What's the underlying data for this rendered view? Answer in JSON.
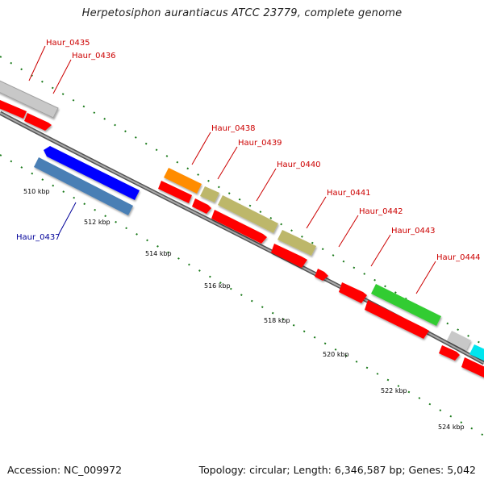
{
  "title": "Herpetosiphon aurantiacus ATCC 23779, complete genome",
  "footer": {
    "accession": "Accession: NC_009972",
    "summary": "Topology: circular; Length: 6,346,587 bp; Genes: 5,042"
  },
  "colors": {
    "label_red": "#cc0000",
    "label_blue": "#000099",
    "tick_green": "#1a7a1a",
    "backbone": "#888888",
    "cds": "#ff0000",
    "grey": "#c0c0c0",
    "blue": "#0000ff",
    "steelblue": "#4a7fb5",
    "orange": "#ff8c00",
    "khaki": "#bdb76b",
    "green": "#33cc33",
    "cyan": "#00e5ee"
  },
  "scale_labels": [
    "510 kbp",
    "512 kbp",
    "514 kbp",
    "516 kbp",
    "518 kbp",
    "520 kbp",
    "522 kbp",
    "524 kbp"
  ],
  "gene_labels": [
    {
      "text": "Haur_0435",
      "color": "red"
    },
    {
      "text": "Haur_0436",
      "color": "red"
    },
    {
      "text": "Haur_0437",
      "color": "blue"
    },
    {
      "text": "Haur_0438",
      "color": "red"
    },
    {
      "text": "Haur_0439",
      "color": "red"
    },
    {
      "text": "Haur_0440",
      "color": "red"
    },
    {
      "text": "Haur_0441",
      "color": "red"
    },
    {
      "text": "Haur_0442",
      "color": "red"
    },
    {
      "text": "Haur_0443",
      "color": "red"
    },
    {
      "text": "Haur_0444",
      "color": "red"
    }
  ]
}
